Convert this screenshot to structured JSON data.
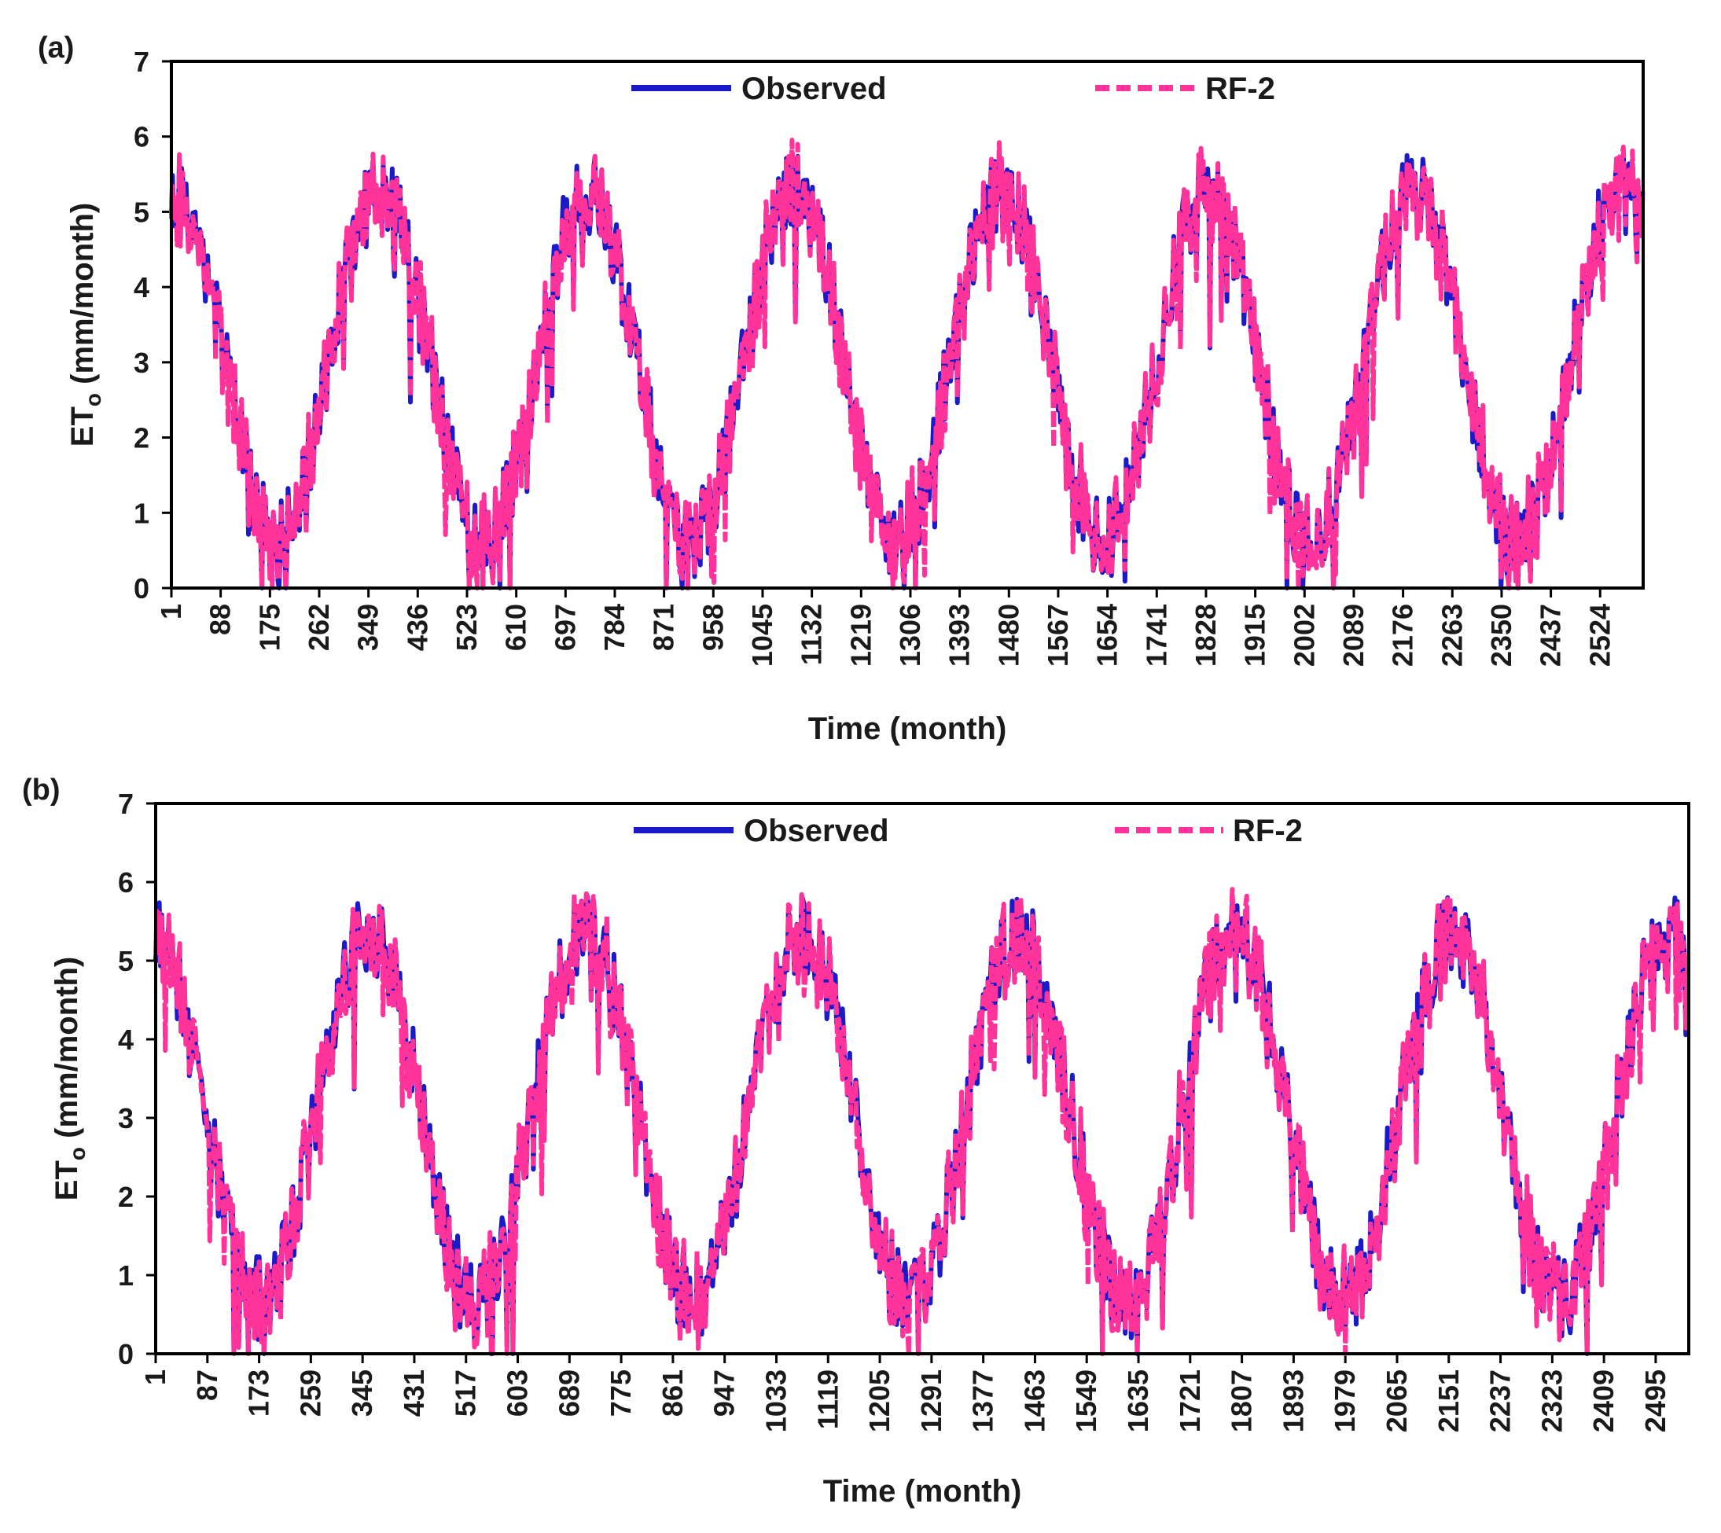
{
  "chart_data": [
    {
      "panel_label": "(a)",
      "type": "line",
      "xlabel": "Time (month)",
      "ylabel_main": "ET",
      "ylabel_sub": "o",
      "ylabel_unit": " (mm/month)",
      "ylim": [
        0,
        7
      ],
      "yticks": [
        "0",
        "1",
        "2",
        "3",
        "4",
        "5",
        "6",
        "7"
      ],
      "xlim": [
        1,
        2600
      ],
      "xticks": [
        1,
        88,
        175,
        262,
        349,
        436,
        523,
        610,
        697,
        784,
        871,
        958,
        1045,
        1132,
        1219,
        1306,
        1393,
        1480,
        1567,
        1654,
        1741,
        1828,
        1915,
        2002,
        2089,
        2176,
        2263,
        2350,
        2437,
        2524
      ],
      "seasonal_model": {
        "period": 365,
        "peak_x": 370,
        "mean": 2.95,
        "amplitude": 2.3,
        "noise": 0.55,
        "seed": 11
      },
      "series": [
        {
          "name": "Observed",
          "color": "#1a1ac8",
          "style": "solid"
        },
        {
          "name": "RF-2",
          "color": "#ff3399",
          "style": "dashed"
        }
      ],
      "legend": [
        "Observed",
        "RF-2"
      ]
    },
    {
      "panel_label": "(b)",
      "type": "line",
      "xlabel": "Time (month)",
      "ylabel_main": "ET",
      "ylabel_sub": "o",
      "ylabel_unit": " (mm/month)",
      "ylim": [
        0,
        7
      ],
      "yticks": [
        "0",
        "1",
        "2",
        "3",
        "4",
        "5",
        "6",
        "7"
      ],
      "xlim": [
        1,
        2550
      ],
      "xticks": [
        1,
        87,
        173,
        259,
        345,
        431,
        517,
        603,
        689,
        775,
        861,
        947,
        1033,
        1119,
        1205,
        1291,
        1377,
        1463,
        1549,
        1635,
        1721,
        1807,
        1893,
        1979,
        2065,
        2151,
        2237,
        2323,
        2409,
        2495
      ],
      "seasonal_model": {
        "period": 360,
        "peak_x": 355,
        "mean": 3.0,
        "amplitude": 2.3,
        "noise": 0.55,
        "seed": 29
      },
      "series": [
        {
          "name": "Observed",
          "color": "#1a1ac8",
          "style": "solid"
        },
        {
          "name": "RF-2",
          "color": "#ff3399",
          "style": "dashed"
        }
      ],
      "legend": [
        "Observed",
        "RF-2"
      ]
    }
  ]
}
